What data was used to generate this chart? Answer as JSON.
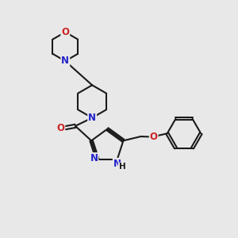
{
  "bg_color": "#e8e8e8",
  "bond_color": "#1a1a1a",
  "N_color": "#2222cc",
  "O_color": "#cc2222",
  "bond_width": 1.5,
  "fig_width": 3.0,
  "fig_height": 3.0,
  "dpi": 100,
  "xlim": [
    0,
    10
  ],
  "ylim": [
    0,
    10
  ]
}
